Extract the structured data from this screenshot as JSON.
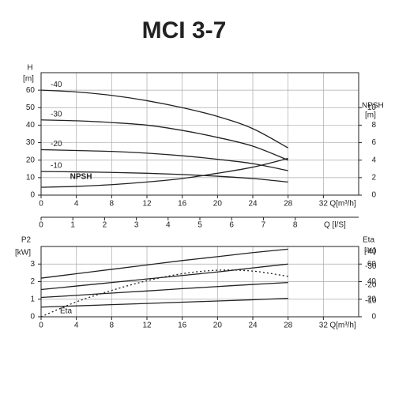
{
  "chart_data": [
    {
      "type": "line",
      "title": "MCI 3-7",
      "x": [
        0,
        4,
        8,
        12,
        16,
        20,
        24,
        28
      ],
      "xlim": [
        0,
        36
      ],
      "xticks": [
        0,
        4,
        8,
        12,
        16,
        20,
        24,
        28,
        32
      ],
      "xlabel": "Q[m³/h]",
      "x2lim": [
        0,
        10
      ],
      "x2ticks": [
        0,
        1,
        2,
        3,
        4,
        5,
        6,
        7,
        8
      ],
      "x2label": "Q [l/S]",
      "ylim": [
        0,
        70
      ],
      "yticks": [
        0,
        10,
        20,
        30,
        40,
        50,
        60
      ],
      "ylabel": "H",
      "yunit": "[m]",
      "y2lim": [
        0,
        14
      ],
      "y2ticks": [
        0,
        2,
        4,
        6,
        8,
        10
      ],
      "y2label": "NPSH",
      "y2unit": "[m]",
      "grid": true,
      "series": [
        {
          "name": "-40",
          "color": "#222222",
          "values": [
            60,
            59,
            57,
            54,
            50,
            45,
            38,
            27
          ]
        },
        {
          "name": "-30",
          "color": "#222222",
          "values": [
            43,
            42.5,
            41.5,
            40,
            37,
            33,
            28,
            20
          ]
        },
        {
          "name": "-20",
          "color": "#222222",
          "values": [
            26,
            25.5,
            25,
            24,
            22.5,
            20.5,
            18,
            14
          ]
        },
        {
          "name": "-10",
          "color": "#222222",
          "values": [
            13.5,
            13.3,
            13,
            12.5,
            11.8,
            10.8,
            9.5,
            7.5
          ]
        },
        {
          "name": "NPSH",
          "color": "#222222",
          "axis": "y2",
          "values": [
            0.9,
            1,
            1.2,
            1.5,
            1.9,
            2.5,
            3.2,
            4.2
          ]
        }
      ]
    },
    {
      "type": "line",
      "x": [
        0,
        4,
        8,
        12,
        16,
        20,
        24,
        28
      ],
      "xlim": [
        0,
        36
      ],
      "xticks": [
        0,
        4,
        8,
        12,
        16,
        20,
        24,
        28,
        32
      ],
      "xlabel": "Q[m³/h]",
      "ylim": [
        0,
        4
      ],
      "yticks": [
        0,
        1,
        2,
        3
      ],
      "ylabel": "P2",
      "yunit": "[kW]",
      "y2lim": [
        0,
        80
      ],
      "y2ticks": [
        0,
        20,
        40,
        60
      ],
      "y2label": "Eta",
      "y2unit": "[%]",
      "grid": true,
      "series": [
        {
          "name": "-40",
          "color": "#222222",
          "values": [
            2.2,
            2.45,
            2.7,
            2.95,
            3.2,
            3.42,
            3.65,
            3.85
          ]
        },
        {
          "name": "-30",
          "color": "#222222",
          "values": [
            1.55,
            1.75,
            1.95,
            2.15,
            2.35,
            2.55,
            2.78,
            3.0
          ]
        },
        {
          "name": "-20",
          "color": "#222222",
          "values": [
            1.1,
            1.22,
            1.35,
            1.47,
            1.6,
            1.72,
            1.84,
            1.95
          ]
        },
        {
          "name": "-10",
          "color": "#222222",
          "values": [
            0.55,
            0.62,
            0.69,
            0.76,
            0.83,
            0.9,
            0.97,
            1.05
          ]
        },
        {
          "name": "Eta",
          "color": "#222222",
          "axis": "y2",
          "dashed": true,
          "values": [
            0,
            17,
            30,
            41,
            49,
            53,
            52,
            46
          ]
        }
      ]
    }
  ]
}
